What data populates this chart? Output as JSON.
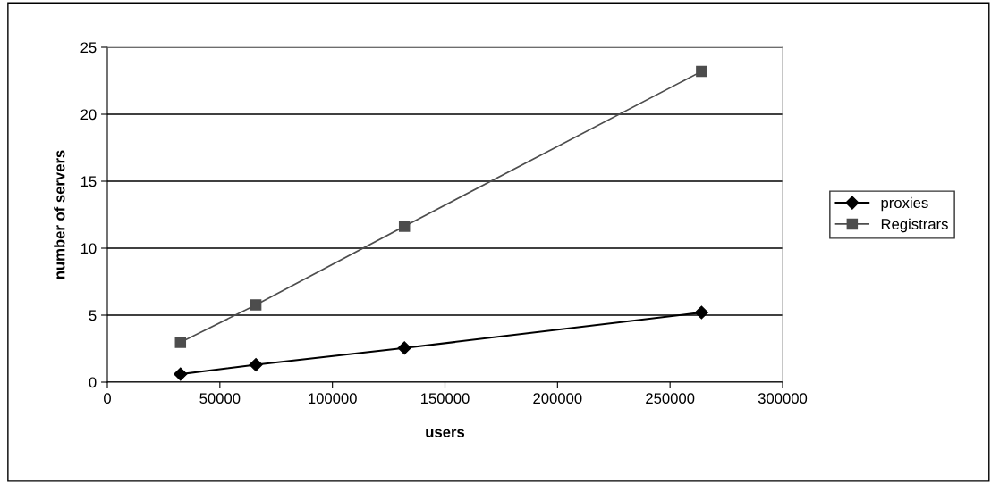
{
  "chart_data": {
    "type": "line",
    "xlabel": "users",
    "ylabel": "number of servers",
    "series": [
      {
        "name": "proxies",
        "color": "#000000",
        "marker": "diamond",
        "x": [
          32500,
          66000,
          132000,
          264000
        ],
        "values": [
          0.6,
          1.3,
          2.55,
          5.2
        ]
      },
      {
        "name": "Registrars",
        "color": "#4d4d4d",
        "marker": "square",
        "x": [
          32500,
          66000,
          132000,
          264000
        ],
        "values": [
          2.97,
          5.77,
          11.64,
          23.2
        ]
      }
    ],
    "xlim": [
      0,
      300000
    ],
    "xticks": [
      0,
      50000,
      100000,
      150000,
      200000,
      250000,
      300000
    ],
    "ylim": [
      0,
      25
    ],
    "yticks": [
      0,
      5,
      10,
      15,
      20,
      25
    ],
    "grid": "y",
    "legend": "right",
    "line_style": "solid"
  }
}
